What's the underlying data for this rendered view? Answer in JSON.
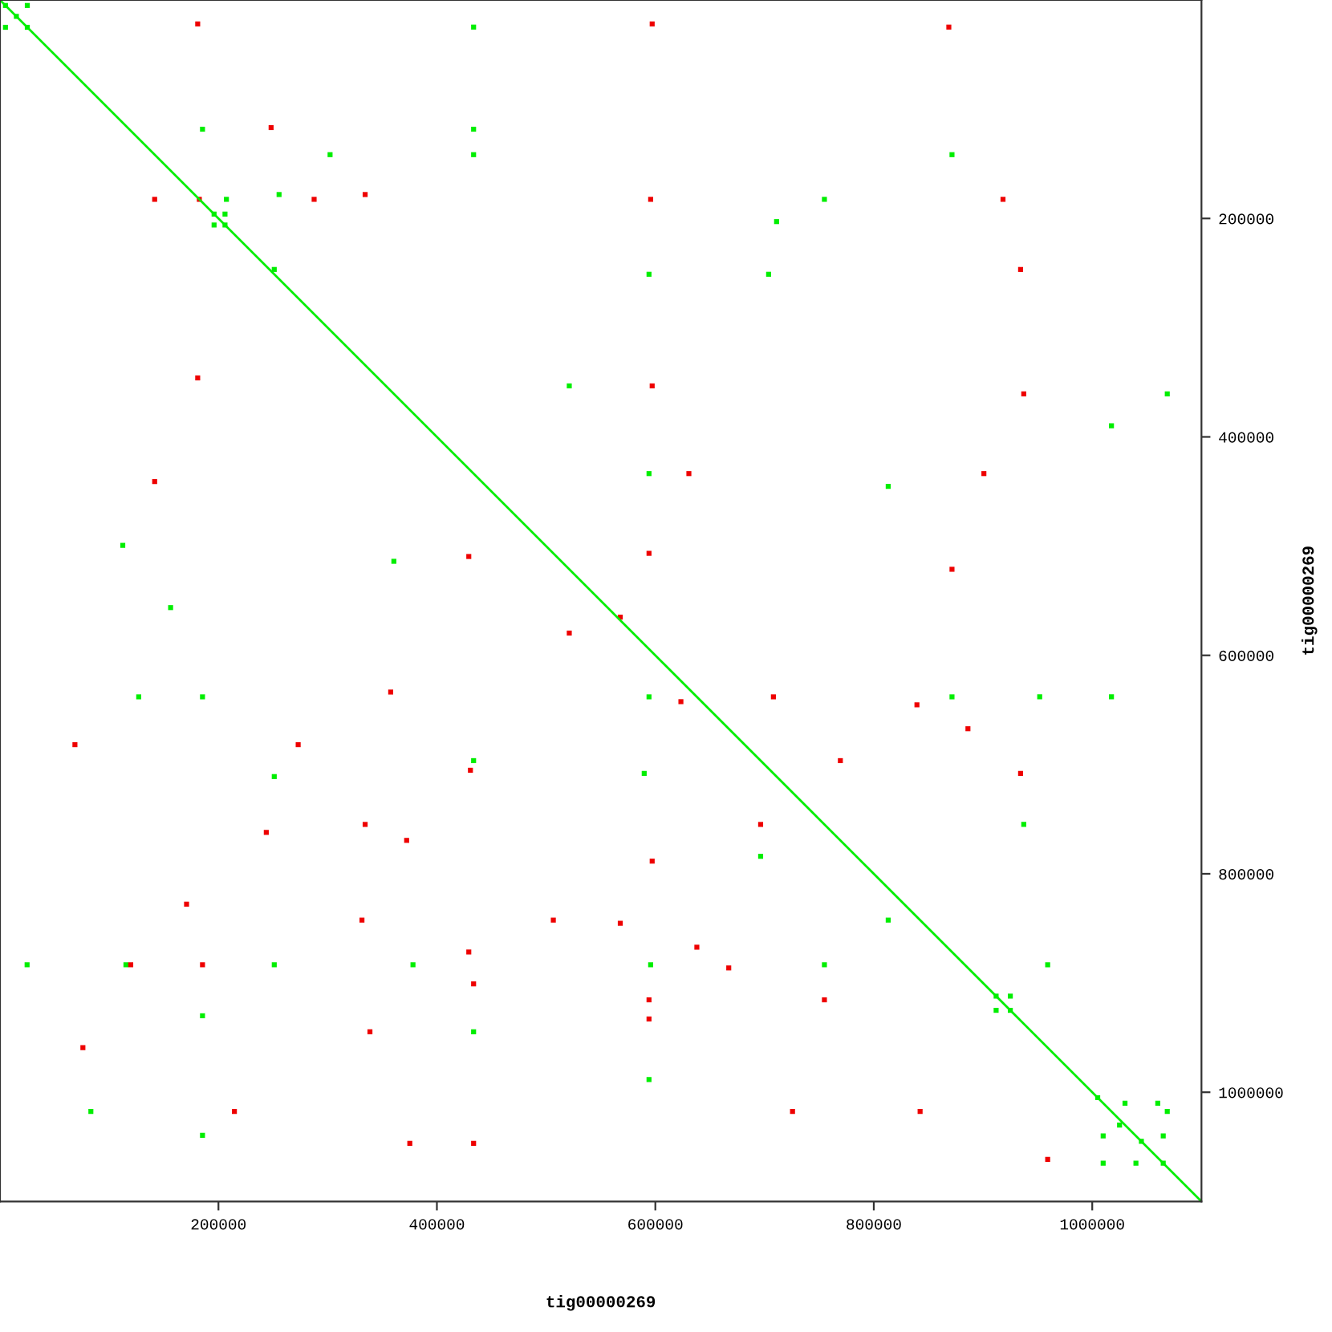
{
  "chart_data": {
    "type": "scatter",
    "xlabel": "tig00000269",
    "ylabel": "tig00000269",
    "xlim": [
      0,
      1100000
    ],
    "ylim": [
      1100000,
      0
    ],
    "xticks": [
      200000,
      400000,
      600000,
      800000,
      1000000
    ],
    "yticks": [
      200000,
      400000,
      600000,
      800000,
      1000000
    ],
    "marker": "square",
    "grid": false,
    "series": [
      {
        "type": "line",
        "marker": "none",
        "color": "#00ee00",
        "x": [
          0,
          1100000
        ],
        "values": [
          0,
          1100000
        ]
      },
      {
        "color": "#00ee00",
        "x": [
          5000,
          15000,
          25000,
          5000,
          25000,
          196000,
          206000,
          196000,
          206000,
          912000,
          925000,
          912000,
          925000,
          1005000,
          1030000,
          1060000,
          1010000,
          1045000,
          1065000,
          1010000,
          1040000,
          1065000,
          1025000,
          185400,
          207300,
          255500,
          251100,
          433600,
          433600,
          594200,
          594200,
          871600,
          951900,
          185400,
          127000,
          115300,
          251100,
          378100,
          589800,
          595700,
          754800,
          959200,
          711000,
          754800,
          433600,
          521200,
          360600,
          594200,
          703700,
          185400,
          433600,
          594200,
          185400,
          813200,
          1068700,
          1017600,
          1068700,
          24800,
          83200,
          302200,
          871600,
          433600,
          251100,
          937300,
          696400,
          1017600,
          813200,
          156200,
          112400
        ],
        "values": [
          5000,
          15000,
          25000,
          25000,
          5000,
          196000,
          206000,
          206000,
          196000,
          912000,
          925000,
          925000,
          912000,
          1005000,
          1010000,
          1010000,
          1040000,
          1045000,
          1040000,
          1065000,
          1065000,
          1065000,
          1030000,
          118300,
          182500,
          178100,
          246700,
          24800,
          141600,
          433600,
          638000,
          638000,
          638000,
          638000,
          638000,
          883300,
          883300,
          883300,
          708100,
          883300,
          883300,
          883300,
          202900,
          182500,
          118300,
          353300,
          513900,
          251100,
          251100,
          1039500,
          944600,
          988400,
          930000,
          842400,
          360600,
          389800,
          1017600,
          883300,
          1017600,
          141600,
          141600,
          696400,
          711000,
          754800,
          784000,
          638000,
          445300,
          556300,
          499300
        ]
      },
      {
        "color": "#ee0000",
        "x": [
          182500,
          181000,
          597100,
          595700,
          868700,
          248200,
          334300,
          141600,
          597100,
          181000,
          594200,
          141600,
          429200,
          630700,
          708100,
          839500,
          623400,
          934400,
          638000,
          429200,
          357700,
          372300,
          243800,
          334300,
          430700,
          597100,
          594200,
          594200,
          185400,
          119700,
          433600,
          842400,
          567900,
          934400,
          918300,
          287600,
          567900,
          338700,
          667200,
          754800,
          886200,
          959200,
          170800,
          75900,
          506600,
          725600,
          433600,
          331400,
          696400,
          937300,
          900800,
          871600,
          769400,
          521200,
          273000,
          68600,
          375200,
          214600
        ],
        "values": [
          182500,
          21900,
          21900,
          182500,
          24800,
          116800,
          178100,
          182500,
          353300,
          346000,
          506600,
          440900,
          509500,
          433600,
          638000,
          645300,
          642400,
          708100,
          867200,
          871600,
          633600,
          769400,
          762100,
          754800,
          705200,
          788400,
          915400,
          932900,
          883300,
          883300,
          900800,
          1017600,
          565000,
          246700,
          182500,
          182500,
          845300,
          944600,
          886200,
          915400,
          667200,
          1061400,
          827800,
          959200,
          842400,
          1017600,
          1046800,
          842400,
          754800,
          360600,
          433600,
          521200,
          696400,
          579600,
          681800,
          681800,
          1046800,
          1017600
        ]
      }
    ]
  }
}
